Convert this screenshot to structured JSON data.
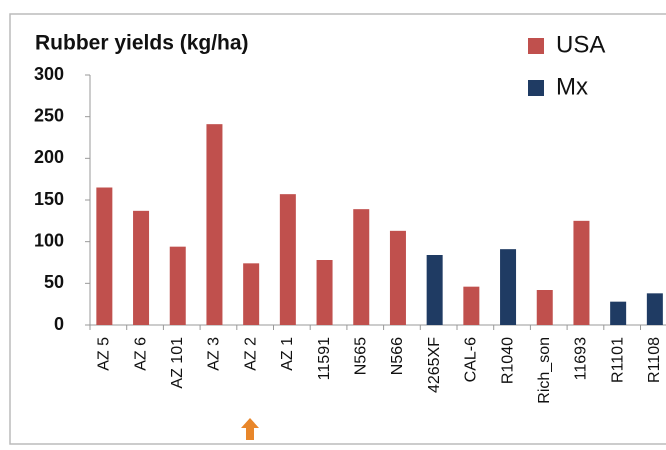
{
  "chart_data": {
    "type": "bar",
    "title": "Rubber yields (kg/ha)",
    "categories": [
      "AZ 5",
      "AZ 6",
      "AZ 101",
      "AZ 3",
      "AZ 2",
      "AZ 1",
      "11591",
      "N565",
      "N566",
      "4265XF",
      "CAL-6",
      "R1040",
      "Rich_son",
      "11693",
      "R1101",
      "R1108"
    ],
    "series": [
      {
        "name": "USA",
        "color": "#c0504d",
        "values": [
          165,
          137,
          94,
          241,
          74,
          157,
          78,
          139,
          113,
          null,
          46,
          null,
          42,
          125,
          null,
          null
        ]
      },
      {
        "name": "Mx",
        "color": "#1f3b63",
        "values": [
          null,
          null,
          null,
          null,
          null,
          null,
          null,
          null,
          null,
          84,
          null,
          91,
          null,
          null,
          28,
          38
        ]
      }
    ],
    "ylim": [
      0,
      300
    ],
    "yticks": [
      0,
      50,
      100,
      150,
      200,
      250,
      300
    ],
    "grid": false,
    "legend": "top-right"
  }
}
